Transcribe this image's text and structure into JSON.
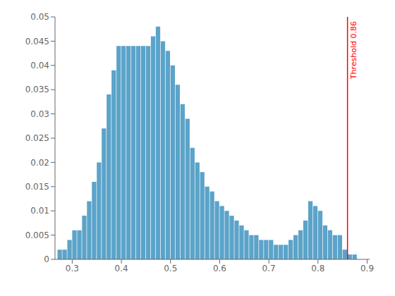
{
  "chart_data": {
    "type": "histogram",
    "bins": [
      0.27,
      0.28,
      0.29,
      0.3,
      0.31,
      0.32,
      0.33,
      0.34,
      0.35,
      0.36,
      0.37,
      0.38,
      0.39,
      0.4,
      0.41,
      0.42,
      0.43,
      0.44,
      0.45,
      0.46,
      0.47,
      0.48,
      0.49,
      0.5,
      0.51,
      0.52,
      0.53,
      0.54,
      0.55,
      0.56,
      0.57,
      0.58,
      0.59,
      0.6,
      0.61,
      0.62,
      0.63,
      0.64,
      0.65,
      0.66,
      0.67,
      0.68,
      0.69,
      0.7,
      0.71,
      0.72,
      0.73,
      0.74,
      0.75,
      0.76,
      0.77,
      0.78,
      0.79,
      0.8,
      0.81,
      0.82,
      0.83,
      0.84,
      0.85,
      0.86,
      0.87,
      0.88
    ],
    "values": [
      0.002,
      0.002,
      0.004,
      0.006,
      0.006,
      0.009,
      0.012,
      0.016,
      0.02,
      0.027,
      0.034,
      0.039,
      0.044,
      0.044,
      0.044,
      0.044,
      0.044,
      0.044,
      0.044,
      0.046,
      0.048,
      0.045,
      0.043,
      0.04,
      0.036,
      0.032,
      0.029,
      0.023,
      0.02,
      0.018,
      0.015,
      0.014,
      0.012,
      0.011,
      0.01,
      0.009,
      0.008,
      0.007,
      0.006,
      0.005,
      0.005,
      0.004,
      0.004,
      0.004,
      0.003,
      0.003,
      0.003,
      0.004,
      0.005,
      0.006,
      0.008,
      0.012,
      0.011,
      0.01,
      0.007,
      0.006,
      0.005,
      0.005,
      0.002,
      0.001,
      0.001
    ],
    "color": "#5ba3c9",
    "xlim": [
      0.265,
      0.905
    ],
    "ylim": [
      0,
      0.05
    ],
    "xticks": [
      0.3,
      0.4,
      0.5,
      0.6,
      0.7,
      0.8,
      0.9
    ],
    "yticks": [
      0,
      0.005,
      0.01,
      0.015,
      0.02,
      0.025,
      0.03,
      0.035,
      0.04,
      0.045,
      0.05
    ],
    "grid": false,
    "annotations": [
      {
        "type": "vline",
        "x": 0.86,
        "text": "Threshold 0.86",
        "color": "#ff0000"
      }
    ]
  }
}
